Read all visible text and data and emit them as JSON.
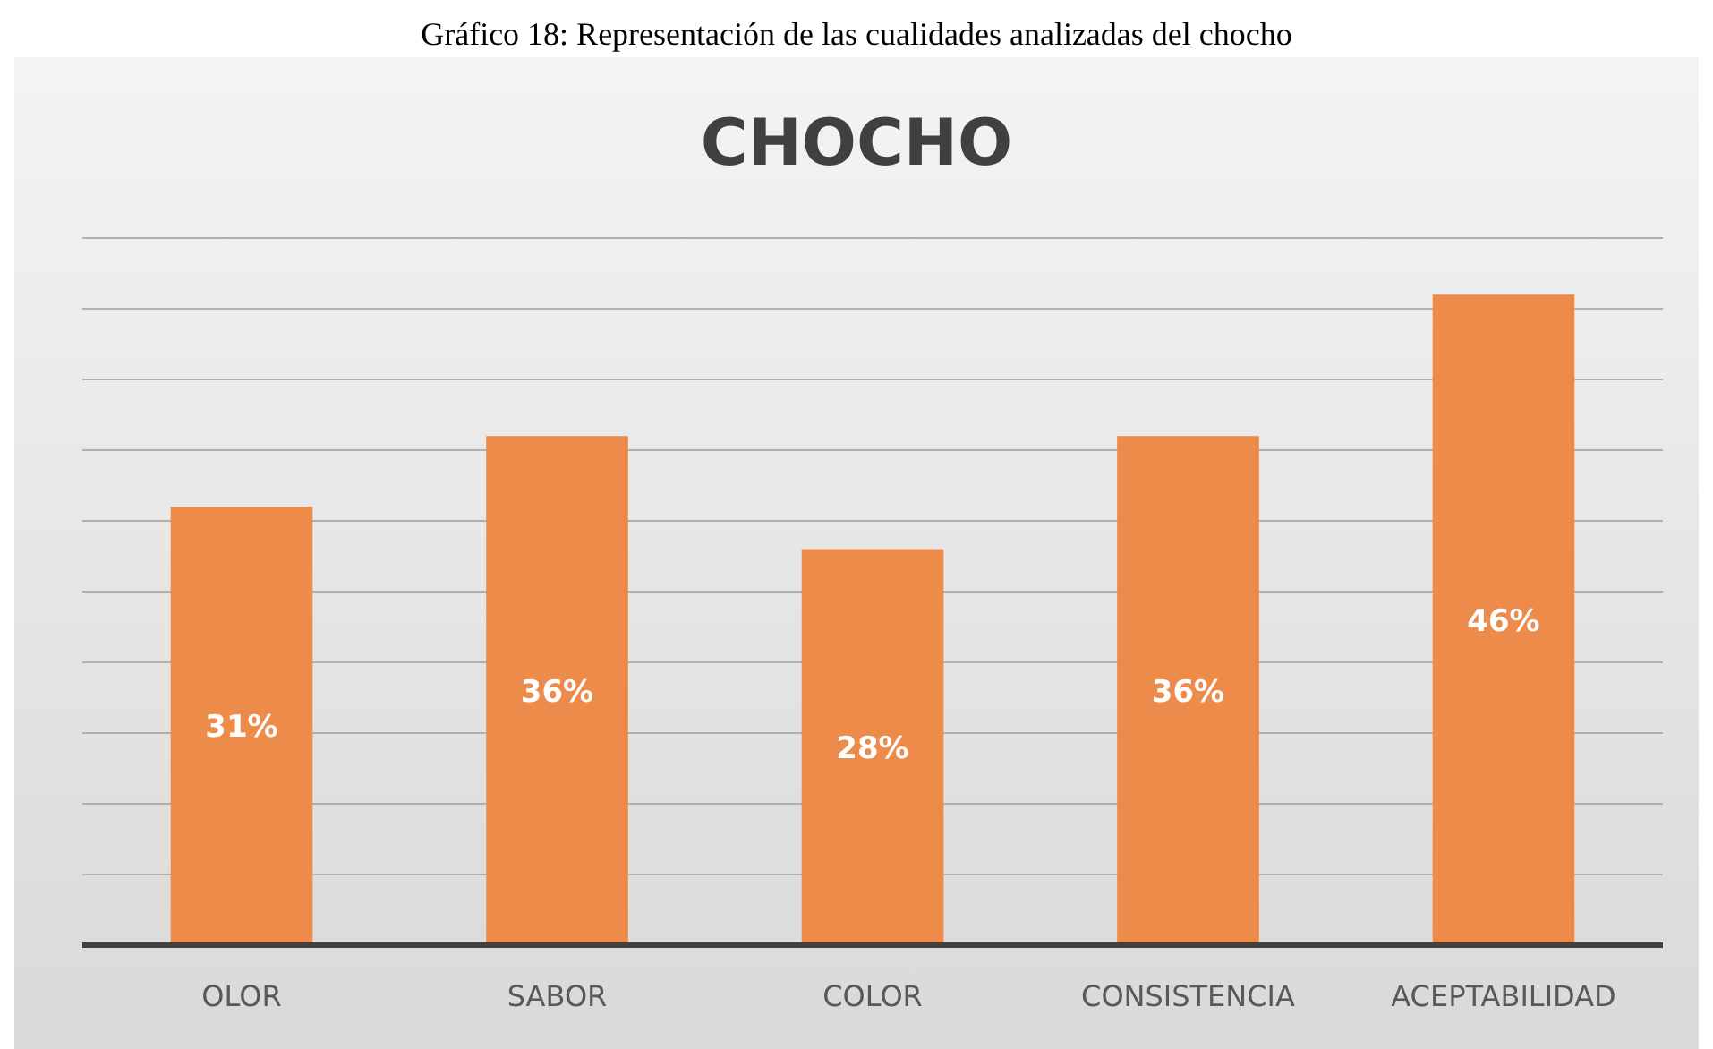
{
  "chart_data": {
    "type": "bar",
    "title": "CHOCHO",
    "subtitle": "Gráfico 18: Representación de las cualidades analizadas del chocho",
    "categories": [
      "OLOR",
      "SABOR",
      "COLOR",
      "CONSISTENCIA",
      "ACEPTABILIDAD"
    ],
    "values": [
      31,
      36,
      28,
      36,
      46
    ],
    "value_labels": [
      "31%",
      "36%",
      "28%",
      "36%",
      "46%"
    ],
    "color": "#ed8b4a",
    "ylim": [
      0,
      50
    ],
    "yticks": [
      {
        "value": 0,
        "label": null
      },
      {
        "value": 5,
        "label": null
      },
      {
        "value": 10,
        "label": null
      },
      {
        "value": 15,
        "label": null
      },
      {
        "value": 20,
        "label": null
      },
      {
        "value": 25,
        "label": null
      },
      {
        "value": 30,
        "label": null
      },
      {
        "value": 35,
        "label": null
      },
      {
        "value": 40,
        "label": null
      },
      {
        "value": 45,
        "label": null
      },
      {
        "value": 50,
        "label": null
      }
    ],
    "grid": "y",
    "tick_labels": "x"
  }
}
